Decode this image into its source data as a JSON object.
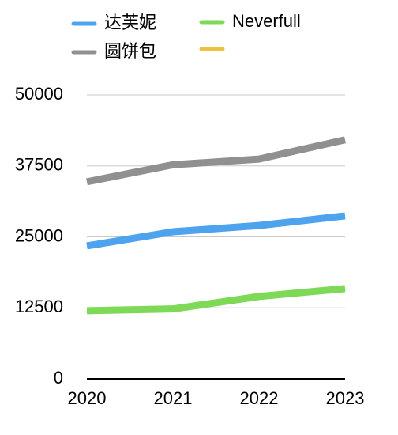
{
  "chart_data": {
    "type": "line",
    "categories": [
      "2020",
      "2021",
      "2022",
      "2023"
    ],
    "series": [
      {
        "name": "达芙妮",
        "color": "#4da3ee",
        "values": [
          23400,
          25900,
          27000,
          28700
        ]
      },
      {
        "name": "圆饼包",
        "color": "#909090",
        "values": [
          34700,
          37700,
          38700,
          42100
        ]
      },
      {
        "name": "Neverfull",
        "color": "#7ed957",
        "values": [
          12000,
          12300,
          14500,
          15900
        ]
      },
      {
        "color": "#f0c040",
        "values": [
          null,
          null,
          null,
          null
        ]
      }
    ],
    "ylim": [
      0,
      50000
    ],
    "yticks": [
      0,
      12500,
      25000,
      37500,
      50000
    ],
    "grid": true
  }
}
